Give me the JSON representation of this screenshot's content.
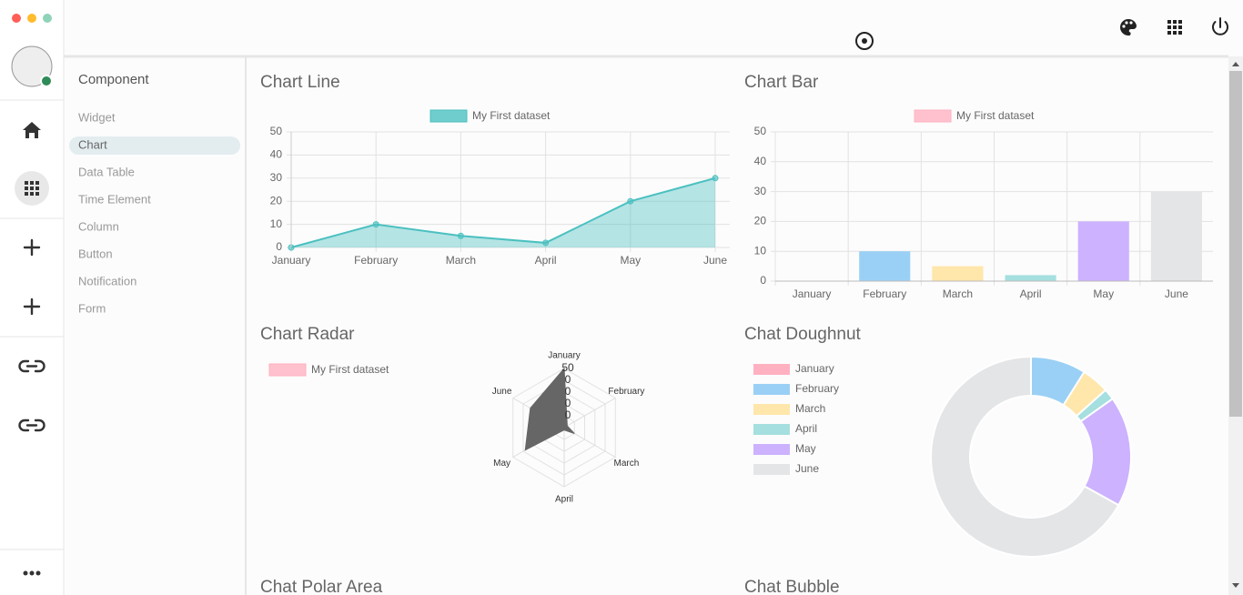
{
  "nav": {
    "menu_title": "Component",
    "items": [
      "Widget",
      "Chart",
      "Data Table",
      "Time Element",
      "Column",
      "Button",
      "Notification",
      "Form"
    ]
  },
  "chart_data": [
    {
      "type": "line",
      "title": "Chart Line",
      "categories": [
        "January",
        "February",
        "March",
        "April",
        "May",
        "June"
      ],
      "series": [
        {
          "name": "My First dataset",
          "color": "#4bc0c0",
          "values": [
            0,
            10,
            5,
            2,
            20,
            30
          ]
        }
      ],
      "ylim": [
        0,
        50
      ],
      "yticks": [
        0,
        10,
        20,
        30,
        40,
        50
      ],
      "grid": true
    },
    {
      "type": "bar",
      "title": "Chart Bar",
      "categories": [
        "January",
        "February",
        "March",
        "April",
        "May",
        "June"
      ],
      "series": [
        {
          "name": "My First dataset",
          "colors": [
            "#ffb1c1",
            "#9ad0f5",
            "#ffe6aa",
            "#a5dfdf",
            "#ccb2ff",
            "#e4e5e7"
          ],
          "values": [
            0,
            10,
            5,
            2,
            20,
            30
          ]
        }
      ],
      "ylim": [
        0,
        50
      ],
      "yticks": [
        0,
        10,
        20,
        30,
        40,
        50
      ],
      "grid": true
    },
    {
      "type": "radar",
      "title": "Chart Radar",
      "categories": [
        "January",
        "February",
        "March",
        "April",
        "May",
        "June"
      ],
      "series": [
        {
          "name": "My First dataset",
          "color": "#ffb1c1",
          "fill_color": "#666666",
          "values": [
            50,
            3,
            10,
            2,
            38,
            33
          ]
        }
      ],
      "rlim": [
        0,
        50
      ],
      "rticks": [
        {
          "value": 10,
          "label": "0"
        },
        {
          "value": 20,
          "label": "0"
        },
        {
          "value": 30,
          "label": "0"
        },
        {
          "value": 40,
          "label": "0"
        },
        50
      ]
    },
    {
      "type": "doughnut",
      "title": "Chat Doughnut",
      "categories": [
        "January",
        "February",
        "March",
        "April",
        "May",
        "June"
      ],
      "values": [
        0,
        10,
        5,
        2,
        20,
        75
      ],
      "colors": [
        "#ffb1c1",
        "#9ad0f5",
        "#ffe6aa",
        "#a5dfdf",
        "#ccb2ff",
        "#e4e5e7"
      ]
    }
  ],
  "more_sections": [
    "Chat Polar Area",
    "Chat Bubble"
  ]
}
